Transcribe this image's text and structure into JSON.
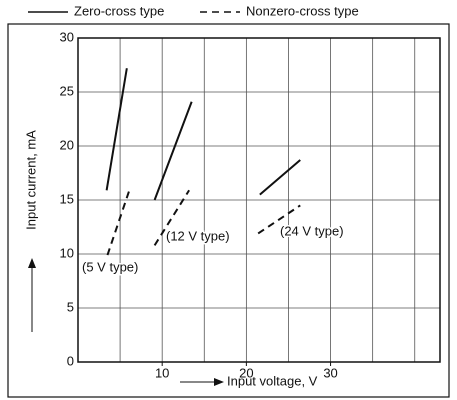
{
  "chart_data": {
    "type": "line",
    "xlabel": "Input voltage, V",
    "ylabel": "Input current, mA",
    "xlim": [
      0,
      43
    ],
    "ylim": [
      0,
      30
    ],
    "xticks": [
      10,
      20,
      30
    ],
    "yticks": [
      0,
      5,
      10,
      15,
      20,
      25,
      30
    ],
    "xgrid": [
      0,
      5,
      10,
      15,
      20,
      25,
      30,
      35,
      40
    ],
    "grid": true,
    "series": [
      {
        "name": "Zero-cross type",
        "color": "#111111",
        "dash": false,
        "x": [
          3.4,
          5.8,
          null,
          9.1,
          13.5,
          null,
          21.6,
          26.4
        ],
        "values": [
          15.9,
          27.2,
          null,
          15.0,
          24.1,
          null,
          15.5,
          18.7
        ]
      },
      {
        "name": "Nonzero-cross type",
        "color": "#111111",
        "dash": true,
        "x": [
          3.5,
          6.1,
          null,
          9.1,
          13.2,
          null,
          21.4,
          26.4
        ],
        "values": [
          9.9,
          15.9,
          null,
          10.8,
          15.9,
          null,
          11.9,
          14.5
        ]
      }
    ],
    "annotations": [
      "(5 V type)",
      "(12 V type)",
      "(24 V type)"
    ]
  }
}
